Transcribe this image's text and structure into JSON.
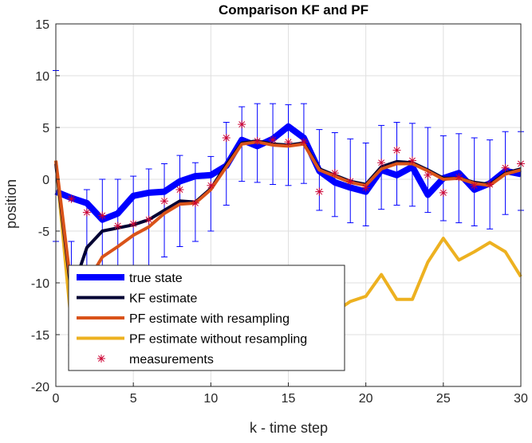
{
  "chart_data": {
    "type": "line",
    "title": "Comparison KF and PF",
    "xlabel": "k - time step",
    "ylabel": "position",
    "xlim": [
      0,
      30
    ],
    "ylim": [
      -20,
      15
    ],
    "xticks": [
      0,
      5,
      10,
      15,
      20,
      25,
      30
    ],
    "yticks": [
      15,
      10,
      5,
      0,
      -5,
      -10,
      -15,
      -20
    ],
    "grid": true,
    "legend_location": "lower-left",
    "x": [
      0,
      1,
      2,
      3,
      4,
      5,
      6,
      7,
      8,
      9,
      10,
      11,
      12,
      13,
      14,
      15,
      16,
      17,
      18,
      19,
      20,
      21,
      22,
      23,
      24,
      25,
      26,
      27,
      28,
      29,
      30
    ],
    "series": [
      {
        "name": "true state",
        "color": "#0000ff",
        "style": "line-thick",
        "values": [
          -1.2,
          -1.8,
          -2.3,
          -3.9,
          -3.3,
          -1.6,
          -1.3,
          -1.2,
          -0.2,
          0.3,
          0.4,
          1.3,
          3.8,
          3.2,
          3.9,
          5.1,
          4.0,
          0.8,
          -0.3,
          -0.8,
          -1.2,
          0.9,
          0.4,
          1.2,
          -1.5,
          0.1,
          0.6,
          -1.0,
          -0.4,
          0.8,
          0.5
        ]
      },
      {
        "name": "KF estimate",
        "color": "#000033",
        "style": "line",
        "values": [
          1.5,
          -11.0,
          -6.6,
          -5.0,
          -4.7,
          -4.4,
          -3.9,
          -3.0,
          -2.1,
          -2.2,
          -0.9,
          1.4,
          3.5,
          3.7,
          3.4,
          3.3,
          3.5,
          1.0,
          0.4,
          -0.2,
          -0.5,
          1.2,
          1.7,
          1.6,
          0.9,
          0.1,
          0.1,
          -0.3,
          -0.5,
          0.6,
          1.0
        ]
      },
      {
        "name": "PF estimate with resampling",
        "color": "#d95319",
        "style": "line",
        "values": [
          1.8,
          -10.5,
          -10.0,
          -7.5,
          -6.5,
          -5.4,
          -4.6,
          -3.3,
          -2.4,
          -2.3,
          -1.0,
          1.2,
          3.4,
          3.6,
          3.3,
          3.2,
          3.4,
          0.9,
          0.3,
          -0.3,
          -0.6,
          1.0,
          1.5,
          1.5,
          0.8,
          0.0,
          0.1,
          -0.4,
          -0.6,
          0.5,
          0.9
        ]
      },
      {
        "name": "PF estimate without resampling",
        "color": "#edb120",
        "style": "line",
        "values": [
          1.8,
          -14.0,
          -15.0,
          -15.0,
          -15.0,
          -15.0,
          -15.0,
          -15.0,
          -15.0,
          -15.0,
          -15.0,
          -15.0,
          -15.0,
          -15.0,
          -15.0,
          -15.0,
          -15.0,
          -14.0,
          -12.8,
          -11.8,
          -11.3,
          -9.2,
          -11.6,
          -11.6,
          -8.0,
          -5.7,
          -7.8,
          -7.0,
          -6.1,
          -7.0,
          -9.4
        ]
      },
      {
        "name": "measurements",
        "color": "#cc0033",
        "style": "marker-asterisk",
        "values": [
          null,
          -1.9,
          -3.2,
          -3.5,
          -4.5,
          -4.3,
          -3.9,
          -2.1,
          -1.0,
          -2.3,
          -0.6,
          4.0,
          5.3,
          3.7,
          3.8,
          3.6,
          3.6,
          -1.2,
          0.6,
          -0.2,
          -0.8,
          1.6,
          2.8,
          1.8,
          0.4,
          -1.3,
          0.2,
          -0.6,
          -0.5,
          1.1,
          1.5
        ]
      }
    ],
    "error_bars": {
      "series": "KF estimate",
      "color": "#0000ff",
      "lower": [
        -6.0,
        -16.0,
        -12.0,
        -10.0,
        -9.5,
        -9.0,
        -8.5,
        -7.5,
        -6.5,
        -6.0,
        -5.0,
        -2.5,
        -0.2,
        -0.3,
        -0.5,
        -0.6,
        -0.4,
        -3.0,
        -3.6,
        -4.2,
        -4.5,
        -2.9,
        -2.5,
        -2.6,
        -3.2,
        -4.0,
        -4.2,
        -4.5,
        -4.8,
        -3.4,
        -3.0
      ],
      "upper": [
        10.5,
        -6.0,
        -1.0,
        0.0,
        0.0,
        0.3,
        1.0,
        1.5,
        2.3,
        1.6,
        2.2,
        5.5,
        7.0,
        7.3,
        7.3,
        7.2,
        7.3,
        4.8,
        4.5,
        3.9,
        3.5,
        5.2,
        5.5,
        5.4,
        5.0,
        4.2,
        4.4,
        4.0,
        3.8,
        4.6,
        4.6
      ]
    }
  }
}
